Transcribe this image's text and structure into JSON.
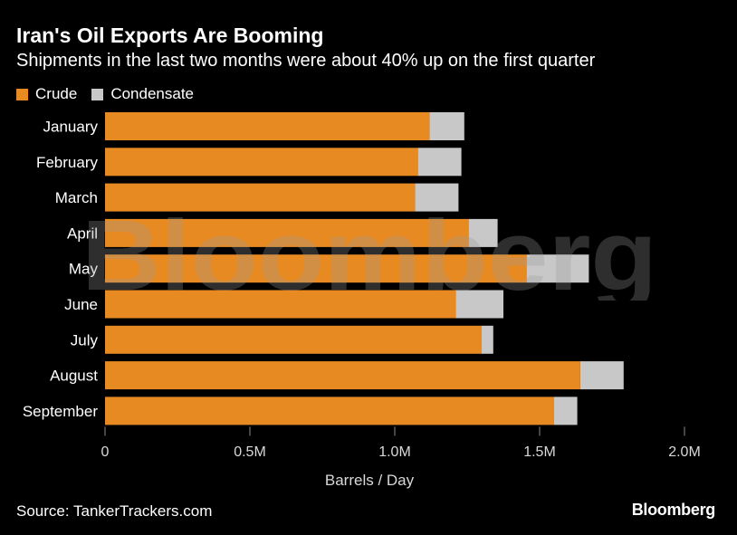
{
  "chart_data": {
    "type": "bar",
    "orientation": "horizontal",
    "stacked": true,
    "title": "Iran's Oil Exports Are Booming",
    "subtitle": "Shipments in the last two months were about 40% up on the first quarter",
    "categories": [
      "January",
      "February",
      "March",
      "April",
      "May",
      "June",
      "July",
      "August",
      "September"
    ],
    "series": [
      {
        "name": "Crude",
        "color": "#e88a22",
        "values": [
          1.12,
          1.08,
          1.07,
          1.255,
          1.455,
          1.21,
          1.3,
          1.64,
          1.55
        ]
      },
      {
        "name": "Condensate",
        "color": "#c8c8c8",
        "values": [
          0.12,
          0.15,
          0.15,
          0.1,
          0.215,
          0.165,
          0.04,
          0.15,
          0.08
        ]
      }
    ],
    "xlabel": "Barrels / Day",
    "xlim": [
      0,
      2.0
    ],
    "x_ticks": [
      {
        "value": 0,
        "label": "0"
      },
      {
        "value": 0.5,
        "label": "0.5M"
      },
      {
        "value": 1.0,
        "label": "1.0M"
      },
      {
        "value": 1.5,
        "label": "1.5M"
      },
      {
        "value": 2.0,
        "label": "2.0M"
      }
    ],
    "grid": false,
    "legend_position": "top-left"
  },
  "footer": {
    "source": "Source: TankerTrackers.com",
    "brand": "Bloomberg"
  },
  "watermark": {
    "text": "Bloomberg"
  }
}
